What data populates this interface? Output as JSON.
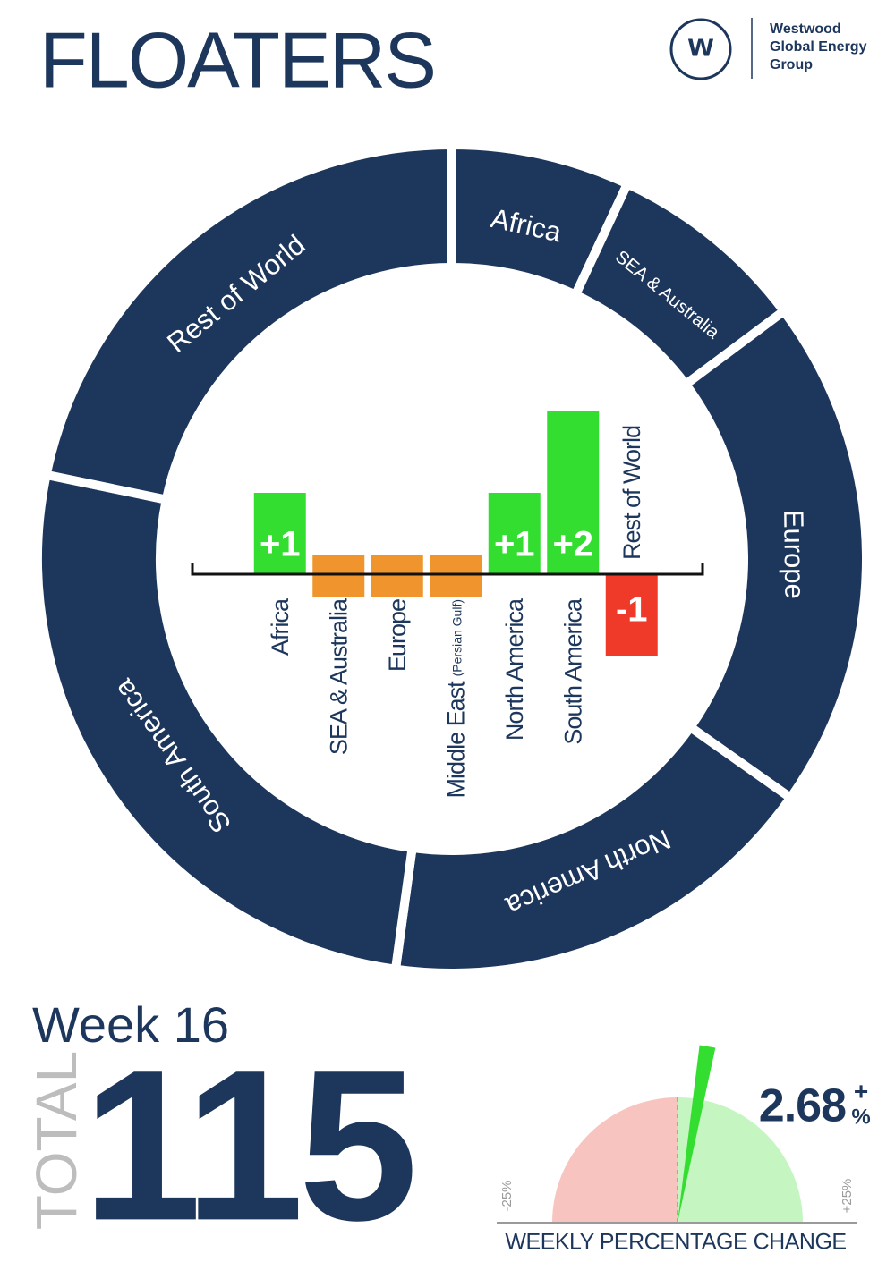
{
  "header": {
    "title": "FLOATERS",
    "logo_letter": "w",
    "logo_text": [
      "Westwood",
      "Global Energy",
      "Group"
    ]
  },
  "chart_data": [
    {
      "type": "donut",
      "categories": [
        "Africa",
        "SEA & Australia",
        "Europe",
        "North America",
        "South America",
        "Rest of World"
      ],
      "values": [
        8,
        9,
        23,
        20,
        30,
        25
      ],
      "color": "#1d365c"
    },
    {
      "type": "bar",
      "categories": [
        "Africa",
        "SEA & Australia",
        "Europe",
        "Middle East",
        "North America",
        "South America",
        "Rest of World"
      ],
      "category_notes": [
        null,
        null,
        null,
        "(Persian Gulf)",
        null,
        null,
        null
      ],
      "values": [
        1,
        0,
        0,
        0,
        1,
        2,
        -1
      ],
      "value_labels": [
        "+1",
        null,
        null,
        null,
        "+1",
        "+2",
        "-1"
      ],
      "ylim": [
        -1,
        2
      ],
      "colors": {
        "positive": "#34de31",
        "zero": "#f0952d",
        "negative": "#ef3a2a"
      }
    },
    {
      "type": "gauge",
      "title": "WEEKLY PERCENTAGE CHANGE",
      "value": 2.68,
      "value_label": "2.68",
      "sign": "+",
      "unit": "%",
      "xlim": [
        -25,
        25
      ],
      "xticks": [
        {
          "value": -25,
          "label": "-25%"
        },
        {
          "value": 25,
          "label": "+25%"
        }
      ],
      "colors": {
        "negative": "#f8c4bf",
        "positive": "#c5f5c1",
        "needle": "#34de31"
      }
    }
  ],
  "summary": {
    "week": "Week 16",
    "total_label": "TOTAL",
    "total": 115
  }
}
